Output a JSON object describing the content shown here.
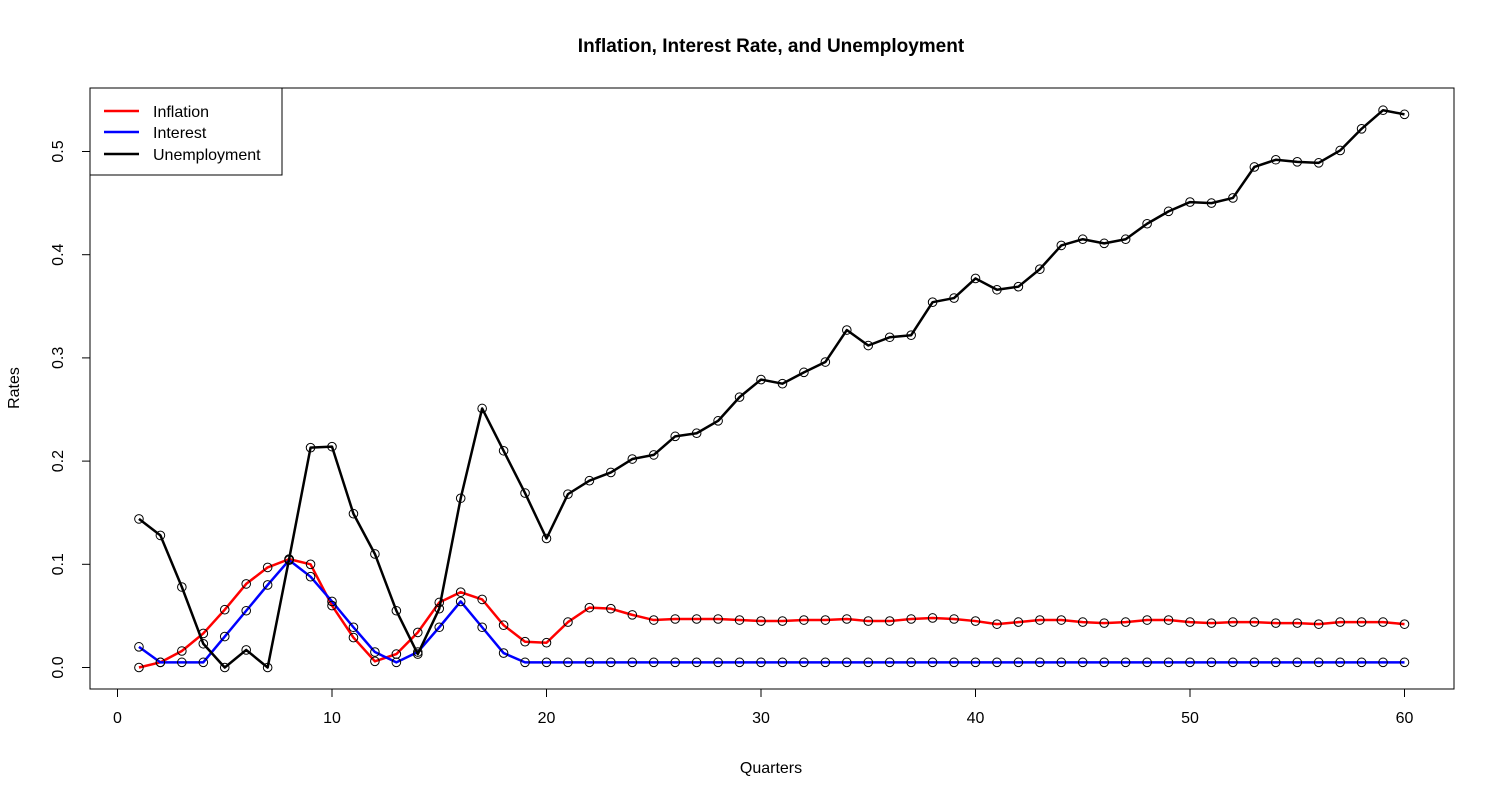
{
  "chart_data": {
    "type": "line",
    "title": "Inflation, Interest Rate, and Unemployment",
    "xlabel": "Quarters",
    "ylabel": "Rates",
    "xlim": [
      0,
      62
    ],
    "ylim": [
      -0.02,
      0.55
    ],
    "x_ticks": [
      0,
      10,
      20,
      30,
      40,
      50,
      60
    ],
    "y_ticks": [
      0.0,
      0.1,
      0.2,
      0.3,
      0.4,
      0.5
    ],
    "x_tick_labels": [
      "0",
      "10",
      "20",
      "30",
      "40",
      "50",
      "60"
    ],
    "y_tick_labels": [
      "0.0",
      "0.1",
      "0.2",
      "0.3",
      "0.4",
      "0.5"
    ],
    "grid": false,
    "legend_position": "top-left",
    "marker": "open-circle",
    "x": [
      1,
      2,
      3,
      4,
      5,
      6,
      7,
      8,
      9,
      10,
      11,
      12,
      13,
      14,
      15,
      16,
      17,
      18,
      19,
      20,
      21,
      22,
      23,
      24,
      25,
      26,
      27,
      28,
      29,
      30,
      31,
      32,
      33,
      34,
      35,
      36,
      37,
      38,
      39,
      40,
      41,
      42,
      43,
      44,
      45,
      46,
      47,
      48,
      49,
      50,
      51,
      52,
      53,
      54,
      55,
      56,
      57,
      58,
      59,
      60
    ],
    "series": [
      {
        "name": "Inflation",
        "color": "#ff0000",
        "values": [
          0.0,
          0.005,
          0.016,
          0.033,
          0.056,
          0.081,
          0.097,
          0.105,
          0.1,
          0.06,
          0.029,
          0.006,
          0.013,
          0.034,
          0.063,
          0.073,
          0.066,
          0.041,
          0.025,
          0.024,
          0.044,
          0.058,
          0.057,
          0.051,
          0.046,
          0.047,
          0.047,
          0.047,
          0.046,
          0.045,
          0.045,
          0.046,
          0.046,
          0.047,
          0.045,
          0.045,
          0.047,
          0.048,
          0.047,
          0.045,
          0.042,
          0.044,
          0.046,
          0.046,
          0.044,
          0.043,
          0.044,
          0.046,
          0.046,
          0.044,
          0.043,
          0.044,
          0.044,
          0.043,
          0.043,
          0.042,
          0.044,
          0.044,
          0.044,
          0.042
        ]
      },
      {
        "name": "Interest",
        "color": "#0000ff",
        "values": [
          0.02,
          0.005,
          0.005,
          0.005,
          0.03,
          0.055,
          0.08,
          0.104,
          0.088,
          0.064,
          0.039,
          0.015,
          0.005,
          0.015,
          0.039,
          0.064,
          0.039,
          0.014,
          0.005,
          0.005,
          0.005,
          0.005,
          0.005,
          0.005,
          0.005,
          0.005,
          0.005,
          0.005,
          0.005,
          0.005,
          0.005,
          0.005,
          0.005,
          0.005,
          0.005,
          0.005,
          0.005,
          0.005,
          0.005,
          0.005,
          0.005,
          0.005,
          0.005,
          0.005,
          0.005,
          0.005,
          0.005,
          0.005,
          0.005,
          0.005,
          0.005,
          0.005,
          0.005,
          0.005,
          0.005,
          0.005,
          0.005,
          0.005,
          0.005,
          0.005
        ]
      },
      {
        "name": "Unemployment",
        "color": "#000000",
        "values": [
          0.144,
          0.128,
          0.078,
          0.023,
          0.0,
          0.017,
          0.0,
          0.105,
          0.213,
          0.214,
          0.149,
          0.11,
          0.055,
          0.013,
          0.057,
          0.164,
          0.251,
          0.21,
          0.169,
          0.125,
          0.168,
          0.181,
          0.189,
          0.202,
          0.206,
          0.224,
          0.227,
          0.239,
          0.262,
          0.279,
          0.275,
          0.286,
          0.296,
          0.327,
          0.312,
          0.32,
          0.322,
          0.354,
          0.358,
          0.377,
          0.366,
          0.369,
          0.386,
          0.409,
          0.415,
          0.411,
          0.415,
          0.43,
          0.442,
          0.451,
          0.45,
          0.455,
          0.485,
          0.492,
          0.49,
          0.489,
          0.501,
          0.522,
          0.54,
          0.536
        ]
      }
    ]
  }
}
